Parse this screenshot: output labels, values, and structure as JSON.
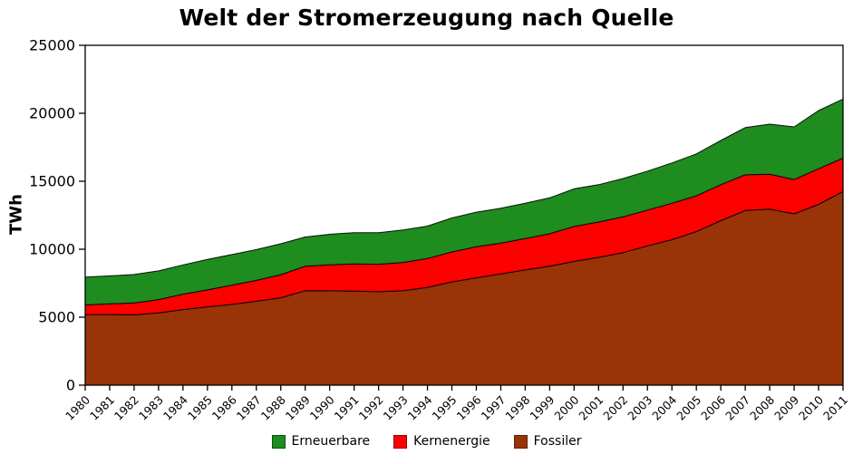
{
  "title": "Welt der Stromerzeugung nach Quelle",
  "y_axis": {
    "label": "TWh"
  },
  "chart_data": {
    "type": "area",
    "stacked": true,
    "title": "Welt der Stromerzeugung nach Quelle",
    "xlabel": "",
    "ylabel": "TWh",
    "ylim": [
      0,
      25000
    ],
    "y_ticks": [
      0,
      5000,
      10000,
      15000,
      20000,
      25000
    ],
    "grid": false,
    "legend_position": "bottom",
    "legend_order": [
      "Erneuerbare",
      "Kernenergie",
      "Fossiler"
    ],
    "x": [
      1980,
      1981,
      1982,
      1983,
      1984,
      1985,
      1986,
      1987,
      1988,
      1989,
      1990,
      1991,
      1992,
      1993,
      1994,
      1995,
      1996,
      1997,
      1998,
      1999,
      2000,
      2001,
      2002,
      2003,
      2004,
      2005,
      2006,
      2007,
      2008,
      2009,
      2010,
      2011
    ],
    "series": [
      {
        "name": "Fossiler",
        "color": "#993409",
        "edge": "#5e2005",
        "values": [
          5200,
          5190,
          5170,
          5320,
          5560,
          5760,
          5940,
          6170,
          6430,
          6950,
          6940,
          6920,
          6870,
          6940,
          7190,
          7590,
          7890,
          8180,
          8470,
          8750,
          9100,
          9400,
          9750,
          10250,
          10700,
          11300,
          12100,
          12850,
          12950,
          12600,
          13300,
          14250
        ]
      },
      {
        "name": "Kernenergie",
        "color": "#fd0000",
        "edge": "#9b0000",
        "values": [
          700,
          790,
          880,
          970,
          1130,
          1250,
          1420,
          1540,
          1700,
          1800,
          1910,
          2000,
          2020,
          2090,
          2130,
          2210,
          2290,
          2270,
          2310,
          2390,
          2580,
          2600,
          2630,
          2630,
          2680,
          2630,
          2650,
          2620,
          2570,
          2530,
          2620,
          2450
        ]
      },
      {
        "name": "Erneuerbare",
        "color": "#1e8c1e",
        "edge": "#0a530a",
        "values": [
          2050,
          2060,
          2090,
          2120,
          2160,
          2240,
          2250,
          2260,
          2270,
          2150,
          2250,
          2300,
          2330,
          2380,
          2380,
          2500,
          2550,
          2570,
          2600,
          2640,
          2770,
          2750,
          2820,
          2870,
          2970,
          3080,
          3250,
          3480,
          3680,
          3870,
          4280,
          4350
        ]
      }
    ]
  }
}
